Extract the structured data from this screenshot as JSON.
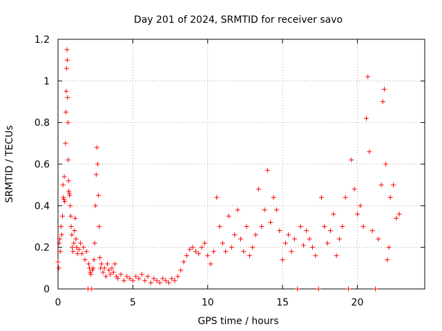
{
  "chart_data": {
    "type": "scatter",
    "title": "Day 201 of 2024, SRMTID for receiver savo",
    "xlabel": "GPS time / hours",
    "ylabel": "SRMTID / TECUs",
    "xlim": [
      0,
      24.5
    ],
    "ylim": [
      0,
      1.2
    ],
    "xticks": [
      0,
      5,
      10,
      15,
      20
    ],
    "yticks": [
      0,
      0.2,
      0.4,
      0.6,
      0.8,
      1,
      1.2
    ],
    "ytick_labels": [
      "0",
      "0.2",
      "0.4",
      "0.6",
      "0.8",
      "1",
      "1.2"
    ],
    "grid": true,
    "marker": "+",
    "color": "#ff0000",
    "series": [
      {
        "name": "SRMTID",
        "points": [
          [
            0.0,
            0.13
          ],
          [
            0.05,
            0.1
          ],
          [
            0.08,
            0.22
          ],
          [
            0.12,
            0.24
          ],
          [
            0.15,
            0.18
          ],
          [
            0.2,
            0.3
          ],
          [
            0.25,
            0.26
          ],
          [
            0.3,
            0.35
          ],
          [
            0.33,
            0.5
          ],
          [
            0.36,
            0.44
          ],
          [
            0.4,
            0.43
          ],
          [
            0.42,
            0.54
          ],
          [
            0.45,
            0.42
          ],
          [
            0.5,
            0.7
          ],
          [
            0.52,
            0.85
          ],
          [
            0.55,
            0.95
          ],
          [
            0.57,
            1.06
          ],
          [
            0.6,
            1.15
          ],
          [
            0.62,
            1.1
          ],
          [
            0.64,
            0.92
          ],
          [
            0.66,
            0.8
          ],
          [
            0.68,
            0.62
          ],
          [
            0.7,
            0.52
          ],
          [
            0.72,
            0.47
          ],
          [
            0.75,
            0.46
          ],
          [
            0.78,
            0.45
          ],
          [
            0.82,
            0.4
          ],
          [
            0.85,
            0.35
          ],
          [
            0.88,
            0.3
          ],
          [
            0.92,
            0.26
          ],
          [
            0.95,
            0.2
          ],
          [
            1.0,
            0.18
          ],
          [
            1.05,
            0.22
          ],
          [
            1.1,
            0.28
          ],
          [
            1.15,
            0.34
          ],
          [
            1.2,
            0.24
          ],
          [
            1.25,
            0.2
          ],
          [
            1.3,
            0.17
          ],
          [
            1.4,
            0.19
          ],
          [
            1.5,
            0.22
          ],
          [
            1.6,
            0.17
          ],
          [
            1.7,
            0.2
          ],
          [
            1.8,
            0.14
          ],
          [
            1.9,
            0.18
          ],
          [
            2.0,
            0.0
          ],
          [
            2.05,
            0.12
          ],
          [
            2.1,
            0.1
          ],
          [
            2.15,
            0.08
          ],
          [
            2.2,
            0.07
          ],
          [
            2.25,
            0.0
          ],
          [
            2.3,
            0.09
          ],
          [
            2.35,
            0.1
          ],
          [
            2.4,
            0.14
          ],
          [
            2.45,
            0.22
          ],
          [
            2.5,
            0.4
          ],
          [
            2.55,
            0.55
          ],
          [
            2.6,
            0.68
          ],
          [
            2.65,
            0.6
          ],
          [
            2.7,
            0.45
          ],
          [
            2.75,
            0.3
          ],
          [
            2.8,
            0.15
          ],
          [
            2.85,
            0.1
          ],
          [
            2.9,
            0.12
          ],
          [
            3.0,
            0.08
          ],
          [
            3.1,
            0.1
          ],
          [
            3.2,
            0.06
          ],
          [
            3.3,
            0.12
          ],
          [
            3.4,
            0.09
          ],
          [
            3.5,
            0.07
          ],
          [
            3.6,
            0.1
          ],
          [
            3.7,
            0.08
          ],
          [
            3.8,
            0.12
          ],
          [
            3.9,
            0.06
          ],
          [
            4.0,
            0.05
          ],
          [
            4.2,
            0.07
          ],
          [
            4.4,
            0.04
          ],
          [
            4.6,
            0.06
          ],
          [
            4.8,
            0.05
          ],
          [
            5.0,
            0.04
          ],
          [
            5.2,
            0.06
          ],
          [
            5.4,
            0.05
          ],
          [
            5.6,
            0.07
          ],
          [
            5.8,
            0.04
          ],
          [
            6.0,
            0.06
          ],
          [
            6.2,
            0.03
          ],
          [
            6.4,
            0.05
          ],
          [
            6.6,
            0.04
          ],
          [
            6.8,
            0.03
          ],
          [
            7.0,
            0.05
          ],
          [
            7.2,
            0.04
          ],
          [
            7.4,
            0.03
          ],
          [
            7.6,
            0.05
          ],
          [
            7.8,
            0.04
          ],
          [
            8.0,
            0.06
          ],
          [
            8.2,
            0.09
          ],
          [
            8.4,
            0.13
          ],
          [
            8.6,
            0.16
          ],
          [
            8.8,
            0.19
          ],
          [
            9.0,
            0.2
          ],
          [
            9.2,
            0.18
          ],
          [
            9.4,
            0.17
          ],
          [
            9.6,
            0.2
          ],
          [
            9.8,
            0.22
          ],
          [
            10.0,
            0.16
          ],
          [
            10.2,
            0.12
          ],
          [
            10.4,
            0.18
          ],
          [
            10.6,
            0.44
          ],
          [
            10.8,
            0.3
          ],
          [
            11.0,
            0.22
          ],
          [
            11.2,
            0.18
          ],
          [
            11.4,
            0.35
          ],
          [
            11.6,
            0.2
          ],
          [
            11.8,
            0.26
          ],
          [
            12.0,
            0.38
          ],
          [
            12.2,
            0.24
          ],
          [
            12.4,
            0.18
          ],
          [
            12.6,
            0.3
          ],
          [
            12.8,
            0.16
          ],
          [
            13.0,
            0.2
          ],
          [
            13.2,
            0.26
          ],
          [
            13.4,
            0.48
          ],
          [
            13.6,
            0.3
          ],
          [
            13.8,
            0.38
          ],
          [
            14.0,
            0.57
          ],
          [
            14.2,
            0.32
          ],
          [
            14.4,
            0.44
          ],
          [
            14.6,
            0.38
          ],
          [
            14.8,
            0.28
          ],
          [
            15.0,
            0.14
          ],
          [
            15.2,
            0.22
          ],
          [
            15.4,
            0.26
          ],
          [
            15.6,
            0.18
          ],
          [
            15.8,
            0.24
          ],
          [
            16.0,
            0.0
          ],
          [
            16.2,
            0.3
          ],
          [
            16.4,
            0.21
          ],
          [
            16.6,
            0.28
          ],
          [
            16.8,
            0.24
          ],
          [
            17.0,
            0.2
          ],
          [
            17.2,
            0.16
          ],
          [
            17.4,
            0.0
          ],
          [
            17.6,
            0.44
          ],
          [
            17.8,
            0.3
          ],
          [
            18.0,
            0.22
          ],
          [
            18.2,
            0.28
          ],
          [
            18.4,
            0.36
          ],
          [
            18.6,
            0.16
          ],
          [
            18.8,
            0.24
          ],
          [
            19.0,
            0.3
          ],
          [
            19.2,
            0.44
          ],
          [
            19.4,
            0.0
          ],
          [
            19.6,
            0.62
          ],
          [
            19.8,
            0.48
          ],
          [
            20.0,
            0.36
          ],
          [
            20.2,
            0.4
          ],
          [
            20.4,
            0.3
          ],
          [
            20.6,
            0.82
          ],
          [
            20.7,
            1.02
          ],
          [
            20.8,
            0.66
          ],
          [
            21.0,
            0.28
          ],
          [
            21.2,
            0.0
          ],
          [
            21.4,
            0.24
          ],
          [
            21.6,
            0.5
          ],
          [
            21.7,
            0.9
          ],
          [
            21.8,
            0.96
          ],
          [
            21.9,
            0.6
          ],
          [
            22.0,
            0.14
          ],
          [
            22.1,
            0.2
          ],
          [
            22.2,
            0.44
          ],
          [
            22.4,
            0.5
          ],
          [
            22.6,
            0.34
          ],
          [
            22.8,
            0.36
          ]
        ]
      }
    ]
  }
}
